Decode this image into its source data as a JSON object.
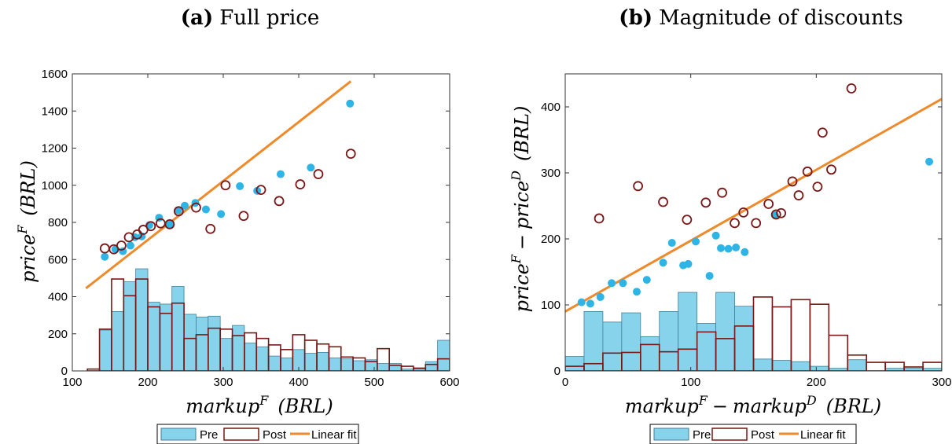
{
  "colors": {
    "pre": "#87d3ec",
    "pre_stroke": "#3f7f97",
    "pre_dot": "#2fb4e6",
    "post": "#7a1717",
    "fit": "#ef8a2b"
  },
  "chart_data": [
    {
      "panel_label": "(a)",
      "title": "Full price",
      "type": "scatter",
      "xlabel_main": "markup",
      "xlabel_sup": "F",
      "xlabel_rest": "(BRL)",
      "ylabel_main": "price",
      "ylabel_sup": "F",
      "ylabel_rest": "(BRL)",
      "xlim": [
        100,
        600
      ],
      "ylim": [
        0,
        1600
      ],
      "xticks": [
        100,
        200,
        300,
        400,
        500,
        600
      ],
      "yticks": [
        0,
        200,
        400,
        600,
        800,
        1000,
        1200,
        1400,
        1600
      ],
      "histogram": {
        "bin_width": 16,
        "bin_starts": [
          120,
          136,
          152,
          168,
          184,
          200,
          216,
          232,
          248,
          264,
          280,
          296,
          312,
          328,
          344,
          360,
          376,
          392,
          408,
          424,
          440,
          456,
          472,
          488,
          504,
          520,
          536,
          552,
          568,
          584
        ],
        "pre": [
          0,
          220,
          320,
          480,
          550,
          370,
          360,
          455,
          305,
          290,
          295,
          175,
          245,
          150,
          130,
          80,
          70,
          115,
          95,
          100,
          70,
          65,
          55,
          60,
          40,
          40,
          10,
          10,
          50,
          165
        ],
        "post": [
          10,
          225,
          495,
          405,
          495,
          345,
          310,
          365,
          175,
          195,
          230,
          225,
          190,
          205,
          175,
          140,
          115,
          195,
          165,
          145,
          130,
          75,
          70,
          50,
          120,
          30,
          25,
          15,
          35,
          65
        ]
      },
      "series": [
        {
          "name": "Pre",
          "x": [
            143,
            157,
            167,
            177,
            183,
            192,
            202,
            215,
            229,
            240,
            249,
            263,
            277,
            297,
            322,
            345,
            376,
            416,
            468
          ],
          "y": [
            615,
            655,
            645,
            675,
            720,
            725,
            785,
            825,
            790,
            865,
            890,
            905,
            870,
            845,
            995,
            970,
            1060,
            1095,
            1440
          ]
        },
        {
          "name": "Post",
          "x": [
            143,
            155,
            165,
            175,
            186,
            194,
            204,
            217,
            229,
            241,
            264,
            283,
            303,
            327,
            350,
            374,
            402,
            426,
            469
          ],
          "y": [
            660,
            655,
            675,
            720,
            735,
            760,
            780,
            795,
            790,
            860,
            880,
            765,
            1000,
            835,
            975,
            915,
            1005,
            1060,
            1170
          ]
        },
        {
          "name": "Linear fit",
          "x": [
            118,
            469
          ],
          "y": [
            445,
            1560
          ]
        }
      ],
      "legend": [
        "Pre",
        "Post",
        "Linear fit"
      ],
      "legend_placement": "bottom"
    },
    {
      "panel_label": "(b)",
      "title": "Magnitude of discounts",
      "type": "scatter",
      "xlabel_main": "markup",
      "xlabel_sup": "F",
      "xlabel_rest": "(BRL)",
      "xlabel_main2": "markup",
      "xlabel_sup2": "D",
      "ylabel_main": "price",
      "ylabel_sup": "F",
      "ylabel_rest": "(BRL)",
      "ylabel_main2": "price",
      "ylabel_sup2": "D",
      "xlim": [
        0,
        300
      ],
      "ylim": [
        0,
        450
      ],
      "xticks": [
        0,
        100,
        200,
        300
      ],
      "yticks": [
        0,
        100,
        200,
        300,
        400
      ],
      "histogram": {
        "bin_width": 15,
        "bin_starts": [
          0,
          15,
          30,
          45,
          60,
          75,
          90,
          105,
          120,
          135,
          150,
          165,
          180,
          195,
          210,
          225,
          240,
          255,
          270,
          285
        ],
        "pre": [
          22,
          90,
          74,
          88,
          52,
          90,
          119,
          72,
          119,
          98,
          18,
          16,
          14,
          7,
          4,
          17,
          0,
          4,
          4,
          4
        ],
        "post": [
          7,
          11,
          27,
          28,
          40,
          29,
          33,
          59,
          49,
          68,
          112,
          97,
          108,
          101,
          54,
          24,
          13,
          13,
          6,
          13
        ]
      },
      "series": [
        {
          "name": "Pre",
          "x": [
            13,
            20,
            28,
            37,
            46,
            57,
            65,
            78,
            85,
            94,
            98,
            104,
            115,
            120,
            124,
            130,
            136,
            143,
            167,
            290
          ],
          "y": [
            104,
            102,
            112,
            133,
            133,
            120,
            138,
            164,
            194,
            160,
            162,
            196,
            144,
            205,
            186,
            185,
            187,
            180,
            236,
            317
          ]
        },
        {
          "name": "Post",
          "x": [
            27,
            58,
            78,
            97,
            112,
            125,
            135,
            142,
            152,
            162,
            168,
            172,
            181,
            186,
            193,
            201,
            205,
            212,
            228
          ],
          "y": [
            231,
            280,
            256,
            229,
            255,
            270,
            224,
            240,
            224,
            253,
            237,
            239,
            287,
            266,
            302,
            279,
            361,
            305,
            428
          ]
        },
        {
          "name": "Linear fit",
          "x": [
            0,
            300
          ],
          "y": [
            90,
            412
          ]
        }
      ],
      "legend": [
        "Pre",
        "Post",
        "Linear fit"
      ],
      "legend_placement": "bottom"
    }
  ]
}
